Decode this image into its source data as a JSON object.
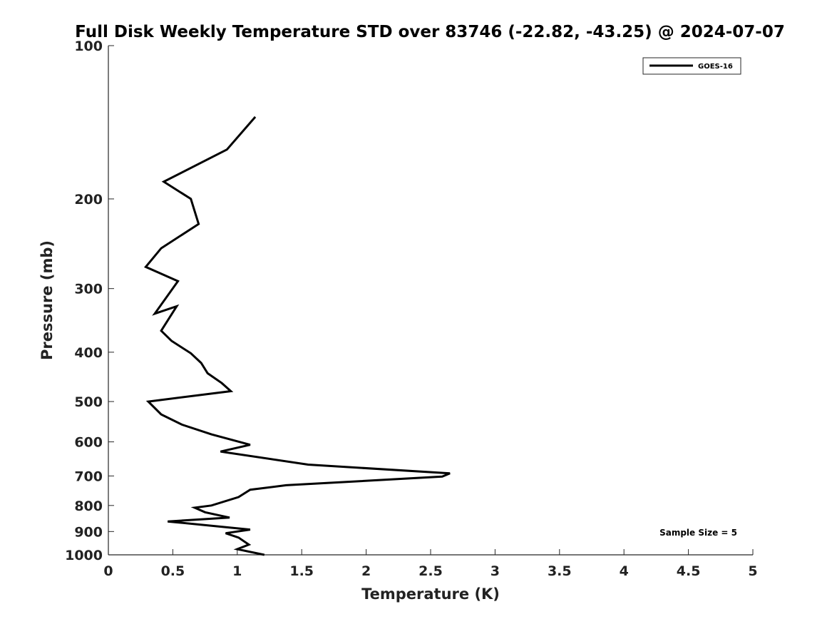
{
  "chart_data": {
    "type": "line",
    "title": "Full Disk Weekly Temperature STD over 83746 (-22.82, -43.25) @ 2024-07-07",
    "xlabel": "Temperature (K)",
    "ylabel": "Pressure (mb)",
    "xlim": [
      0,
      5
    ],
    "ylim": [
      100,
      1000
    ],
    "y_scale": "log",
    "y_reversed": true,
    "x_ticks": [
      "0",
      "0.5",
      "1",
      "1.5",
      "2",
      "2.5",
      "3",
      "3.5",
      "4",
      "4.5",
      "5"
    ],
    "y_ticks": [
      "100",
      "200",
      "300",
      "400",
      "500",
      "600",
      "700",
      "800",
      "900",
      "1000"
    ],
    "grid": false,
    "legend_position": "top-right",
    "line_color": "#000000",
    "series": [
      {
        "name": "GOES-16",
        "points": [
          {
            "p": 138,
            "t": 1.14
          },
          {
            "p": 160,
            "t": 0.92
          },
          {
            "p": 185,
            "t": 0.43
          },
          {
            "p": 200,
            "t": 0.64
          },
          {
            "p": 224,
            "t": 0.7
          },
          {
            "p": 250,
            "t": 0.41
          },
          {
            "p": 272,
            "t": 0.29
          },
          {
            "p": 290,
            "t": 0.54
          },
          {
            "p": 336,
            "t": 0.36
          },
          {
            "p": 325,
            "t": 0.53
          },
          {
            "p": 363,
            "t": 0.41
          },
          {
            "p": 380,
            "t": 0.49
          },
          {
            "p": 402,
            "t": 0.64
          },
          {
            "p": 420,
            "t": 0.72
          },
          {
            "p": 440,
            "t": 0.77
          },
          {
            "p": 460,
            "t": 0.88
          },
          {
            "p": 477,
            "t": 0.95
          },
          {
            "p": 500,
            "t": 0.31
          },
          {
            "p": 530,
            "t": 0.41
          },
          {
            "p": 555,
            "t": 0.57
          },
          {
            "p": 580,
            "t": 0.8
          },
          {
            "p": 608,
            "t": 1.1
          },
          {
            "p": 627,
            "t": 0.87
          },
          {
            "p": 665,
            "t": 1.55
          },
          {
            "p": 692,
            "t": 2.65
          },
          {
            "p": 702,
            "t": 2.59
          },
          {
            "p": 730,
            "t": 1.38
          },
          {
            "p": 745,
            "t": 1.1
          },
          {
            "p": 770,
            "t": 1.01
          },
          {
            "p": 800,
            "t": 0.8
          },
          {
            "p": 808,
            "t": 0.67
          },
          {
            "p": 825,
            "t": 0.75
          },
          {
            "p": 845,
            "t": 0.94
          },
          {
            "p": 860,
            "t": 0.46
          },
          {
            "p": 892,
            "t": 1.1
          },
          {
            "p": 907,
            "t": 0.91
          },
          {
            "p": 925,
            "t": 1.01
          },
          {
            "p": 955,
            "t": 1.09
          },
          {
            "p": 975,
            "t": 1.0
          },
          {
            "p": 1000,
            "t": 1.21
          }
        ]
      }
    ],
    "annotations": [
      "Sample Size = 5"
    ]
  }
}
